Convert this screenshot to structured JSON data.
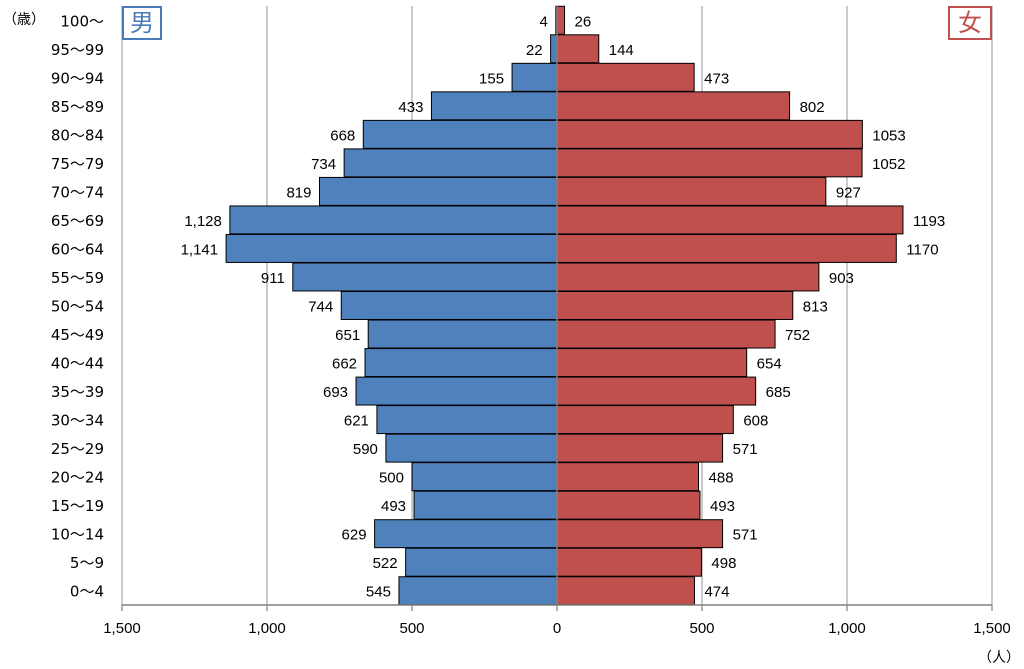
{
  "chart_data": {
    "type": "bar",
    "orientation": "population-pyramid",
    "categories": [
      "0～4",
      "5～9",
      "10～14",
      "15～19",
      "20～24",
      "25～29",
      "30～34",
      "35～39",
      "40～44",
      "45～49",
      "50～54",
      "55～59",
      "60～64",
      "65～69",
      "70～74",
      "75～79",
      "80～84",
      "85～89",
      "90～94",
      "95～99",
      "100～"
    ],
    "series": [
      {
        "name": "男",
        "color": "#4f81bd",
        "values": [
          545,
          522,
          629,
          493,
          500,
          590,
          621,
          693,
          662,
          651,
          744,
          911,
          1141,
          1128,
          819,
          734,
          668,
          433,
          155,
          22,
          4
        ],
        "labels": [
          "545",
          "522",
          "629",
          "493",
          "500",
          "590",
          "621",
          "693",
          "662",
          "651",
          "744",
          "911",
          "1,141",
          "1,128",
          "819",
          "734",
          "668",
          "433",
          "155",
          "22",
          "4"
        ]
      },
      {
        "name": "女",
        "color": "#c0504d",
        "values": [
          474,
          498,
          571,
          493,
          488,
          571,
          608,
          685,
          654,
          752,
          813,
          903,
          1170,
          1193,
          927,
          1052,
          1053,
          802,
          473,
          144,
          26
        ],
        "labels": [
          "474",
          "498",
          "571",
          "493",
          "488",
          "571",
          "608",
          "685",
          "654",
          "752",
          "813",
          "903",
          "1170",
          "1193",
          "927",
          "1052",
          "1053",
          "802",
          "473",
          "144",
          "26"
        ]
      }
    ],
    "x_ticks": [
      -1500,
      -1000,
      -500,
      0,
      500,
      1000,
      1500
    ],
    "x_tick_labels": [
      "1,500",
      "1,000",
      "500",
      "0",
      "500",
      "1,000",
      "1,500"
    ],
    "xlim": [
      -1500,
      1500
    ],
    "grid": "vertical",
    "ylabel": "（歳）",
    "xlabel": "（人）"
  }
}
